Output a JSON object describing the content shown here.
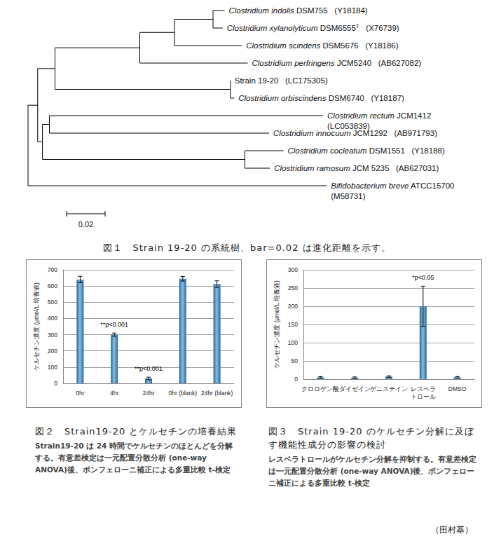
{
  "tree": {
    "length": 0,
    "children": [
      {
        "length": 0.005,
        "children": [
          {
            "length": 0.009,
            "children": [
              {
                "length": 0.044,
                "children": [
                  {
                    "length": 0.018,
                    "children": [
                      {
                        "length": 0.02,
                        "children": [
                          {
                            "length": 0.006,
                            "name": "Clostridium indolis",
                            "strain": "DSM755",
                            "accession": "(Y18184)",
                            "italic": true
                          },
                          {
                            "length": 0.005,
                            "name": "Clostridium xylanolyticum",
                            "strain": "DSM6555",
                            "type_strain_mark": "T",
                            "accession": "(X76739)",
                            "italic": true
                          }
                        ]
                      },
                      {
                        "length": 0.035,
                        "name": "Clostridium scindens",
                        "strain": "DSM5676",
                        "accession": "(Y18186)",
                        "italic": true
                      }
                    ]
                  },
                  {
                    "length": 0.056,
                    "name": "Clostridium perfringens",
                    "strain": "JCM5240",
                    "accession": "(AB627082)",
                    "italic": true
                  }
                ]
              },
              {
                "length": 0.091,
                "children": [
                  {
                    "length": 0,
                    "name": "Strain 19-20",
                    "accession": "(LC175305)",
                    "italic": false
                  },
                  {
                    "length": 0.002,
                    "name": "Clostridium orbiscindens",
                    "strain": "DSM6740",
                    "accession": "(Y18187)",
                    "italic": true
                  }
                ]
              }
            ]
          },
          {
            "length": 0.0025,
            "children": [
              {
                "length": 0.0036,
                "children": [
                  {
                    "length": 0.142,
                    "name": "Clostridium rectum",
                    "strain": "JCM1412",
                    "accession": "(LC053839)",
                    "italic": true,
                    "wrap": true
                  },
                  {
                    "length": 0.114,
                    "name": "Clostridium innocuum",
                    "strain": "JCM1292",
                    "accession": "(AB971793)",
                    "italic": true
                  }
                ]
              },
              {
                "length": 0.105,
                "children": [
                  {
                    "length": 0.02,
                    "name": "Clostridium cocleatum",
                    "strain": "DSM1551",
                    "accession": "(Y18188)",
                    "italic": true
                  },
                  {
                    "length": 0.013,
                    "name": "Clostridium ramosum",
                    "strain": "JCM 5235",
                    "accession": "(AB627031)",
                    "italic": true
                  }
                ]
              }
            ]
          }
        ]
      },
      {
        "length": 0.155,
        "name": "Bifidobacterium breve",
        "strain": "ATCC15700",
        "accession": "(M58731)",
        "italic": true,
        "wrap": true
      }
    ]
  },
  "scale_bar": 0.02,
  "figure1_caption": "図１　Strain 19-20 の系統樹、bar=0.02 は進化距離を示す。",
  "chart_data": [
    {
      "type": "bar",
      "y_label": "ケルセチン濃度 (μmol/L 培養液)",
      "categories": [
        "0hr",
        "4hr",
        "24hr",
        "0hr (blank)",
        "24hr (blank)"
      ],
      "values": [
        640,
        300,
        30,
        645,
        612
      ],
      "errors": [
        20,
        10,
        8,
        14,
        20
      ],
      "color": "#2e86c8",
      "ylim": [
        0,
        700
      ],
      "yticks": [
        0,
        100,
        200,
        300,
        400,
        500,
        600,
        700
      ],
      "grid": true,
      "annotations": [
        {
          "category": "4hr",
          "text": "**p<0.001"
        },
        {
          "category": "24hr",
          "text": "**p<0.001"
        }
      ]
    },
    {
      "type": "bar",
      "y_label": "ケルセチン濃度 (μmol/L 培養液)",
      "categories": [
        "クロロゲン酸",
        "ダイゼイン",
        "ゲニステイン",
        "レスベラ\nトロール",
        "DMSO"
      ],
      "values": [
        5,
        4,
        7,
        200,
        5
      ],
      "errors": [
        2,
        2,
        2,
        55,
        2
      ],
      "color": "#2e86c8",
      "ylim": [
        0,
        300
      ],
      "yticks": [
        0,
        50,
        100,
        150,
        200,
        250,
        300
      ],
      "grid": true,
      "annotations": [
        {
          "category": "レスベラ\nトロール",
          "text": "*p<0.05"
        }
      ]
    }
  ],
  "captions": [
    {
      "title": "図２　Strain19-20 とケルセチンの培養結果",
      "body": "Strain19-20 は 24 時間でケルセチンのほとんどを分解する。有意差検定は一元配置分散分析 (one-way ANOVA)後、ボンフェローニ補正による多重比較 t-検定"
    },
    {
      "title": "図３　Strain 19-20 のケルセチン分解に及ぼす機能性成分の影響の検討",
      "body": "レスベラトロールがケルセチン分解を抑制する。有意差検定は一元配置分散分析 (one-way ANOVA)後、ボンフェローニ補正による多重比較 t-検定"
    }
  ],
  "author": "（田村基）"
}
